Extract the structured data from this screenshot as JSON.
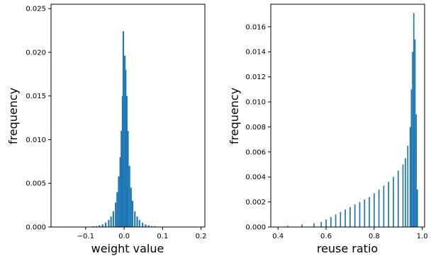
{
  "chart_data": [
    {
      "type": "bar",
      "subtype": "histogram",
      "xlabel": "weight value",
      "ylabel": "frequency",
      "xlim": [
        -0.19,
        0.21
      ],
      "ylim": [
        0,
        0.0255
      ],
      "xticks": [
        -0.1,
        0.0,
        0.1,
        0.2
      ],
      "xtick_labels": [
        "−0.1",
        "0.0",
        "0.1",
        "0.2"
      ],
      "yticks": [
        0.0,
        0.005,
        0.01,
        0.015,
        0.02,
        0.025
      ],
      "ytick_labels": [
        "0.000",
        "0.005",
        "0.010",
        "0.015",
        "0.020",
        "0.025"
      ],
      "bar_color": "#1f77b4",
      "bins": [
        {
          "x": -0.08,
          "y": 0.0001
        },
        {
          "x": -0.072,
          "y": 0.0001
        },
        {
          "x": -0.064,
          "y": 0.0002
        },
        {
          "x": -0.056,
          "y": 0.0003
        },
        {
          "x": -0.048,
          "y": 0.0005
        },
        {
          "x": -0.04,
          "y": 0.0008
        },
        {
          "x": -0.034,
          "y": 0.0012
        },
        {
          "x": -0.028,
          "y": 0.0018
        },
        {
          "x": -0.022,
          "y": 0.0028
        },
        {
          "x": -0.018,
          "y": 0.004
        },
        {
          "x": -0.014,
          "y": 0.0058
        },
        {
          "x": -0.01,
          "y": 0.008
        },
        {
          "x": -0.007,
          "y": 0.011
        },
        {
          "x": -0.004,
          "y": 0.015
        },
        {
          "x": -0.002,
          "y": 0.0224
        },
        {
          "x": 0.0,
          "y": 0.0005
        },
        {
          "x": 0.002,
          "y": 0.0196
        },
        {
          "x": 0.004,
          "y": 0.018
        },
        {
          "x": 0.007,
          "y": 0.015
        },
        {
          "x": 0.01,
          "y": 0.011
        },
        {
          "x": 0.014,
          "y": 0.007
        },
        {
          "x": 0.018,
          "y": 0.0045
        },
        {
          "x": 0.022,
          "y": 0.003
        },
        {
          "x": 0.028,
          "y": 0.0018
        },
        {
          "x": 0.034,
          "y": 0.0012
        },
        {
          "x": 0.04,
          "y": 0.0008
        },
        {
          "x": 0.048,
          "y": 0.0005
        },
        {
          "x": 0.056,
          "y": 0.0003
        },
        {
          "x": 0.064,
          "y": 0.0002
        },
        {
          "x": 0.072,
          "y": 0.0001
        },
        {
          "x": 0.08,
          "y": 0.0001
        }
      ],
      "bin_width": 0.004
    },
    {
      "type": "bar",
      "subtype": "histogram",
      "xlabel": "reuse ratio",
      "ylabel": "frequency",
      "xlim": [
        0.37,
        1.01
      ],
      "ylim": [
        0,
        0.0178
      ],
      "xticks": [
        0.4,
        0.6,
        0.8,
        1.0
      ],
      "xtick_labels": [
        "0.4",
        "0.6",
        "0.8",
        "1.0"
      ],
      "yticks": [
        0.0,
        0.002,
        0.004,
        0.006,
        0.008,
        0.01,
        0.012,
        0.014,
        0.016
      ],
      "ytick_labels": [
        "0.000",
        "0.002",
        "0.004",
        "0.006",
        "0.008",
        "0.010",
        "0.012",
        "0.014",
        "0.016"
      ],
      "bar_color": "#1f77b4",
      "bins": [
        {
          "x": 0.44,
          "y": 0.0001
        },
        {
          "x": 0.5,
          "y": 0.0002
        },
        {
          "x": 0.55,
          "y": 0.0003
        },
        {
          "x": 0.58,
          "y": 0.0004
        },
        {
          "x": 0.6,
          "y": 0.0006
        },
        {
          "x": 0.62,
          "y": 0.0008
        },
        {
          "x": 0.64,
          "y": 0.001
        },
        {
          "x": 0.66,
          "y": 0.0012
        },
        {
          "x": 0.68,
          "y": 0.0014
        },
        {
          "x": 0.7,
          "y": 0.0016
        },
        {
          "x": 0.72,
          "y": 0.0018
        },
        {
          "x": 0.74,
          "y": 0.002
        },
        {
          "x": 0.76,
          "y": 0.0022
        },
        {
          "x": 0.78,
          "y": 0.0024
        },
        {
          "x": 0.8,
          "y": 0.0027
        },
        {
          "x": 0.82,
          "y": 0.003
        },
        {
          "x": 0.84,
          "y": 0.0033
        },
        {
          "x": 0.86,
          "y": 0.0036
        },
        {
          "x": 0.88,
          "y": 0.004
        },
        {
          "x": 0.9,
          "y": 0.0045
        },
        {
          "x": 0.92,
          "y": 0.005
        },
        {
          "x": 0.93,
          "y": 0.0055
        },
        {
          "x": 0.94,
          "y": 0.0065
        },
        {
          "x": 0.95,
          "y": 0.008
        },
        {
          "x": 0.955,
          "y": 0.011
        },
        {
          "x": 0.96,
          "y": 0.014
        },
        {
          "x": 0.965,
          "y": 0.0171
        },
        {
          "x": 0.97,
          "y": 0.015
        },
        {
          "x": 0.975,
          "y": 0.009
        },
        {
          "x": 0.98,
          "y": 0.003
        }
      ],
      "bin_width": 0.005
    }
  ]
}
